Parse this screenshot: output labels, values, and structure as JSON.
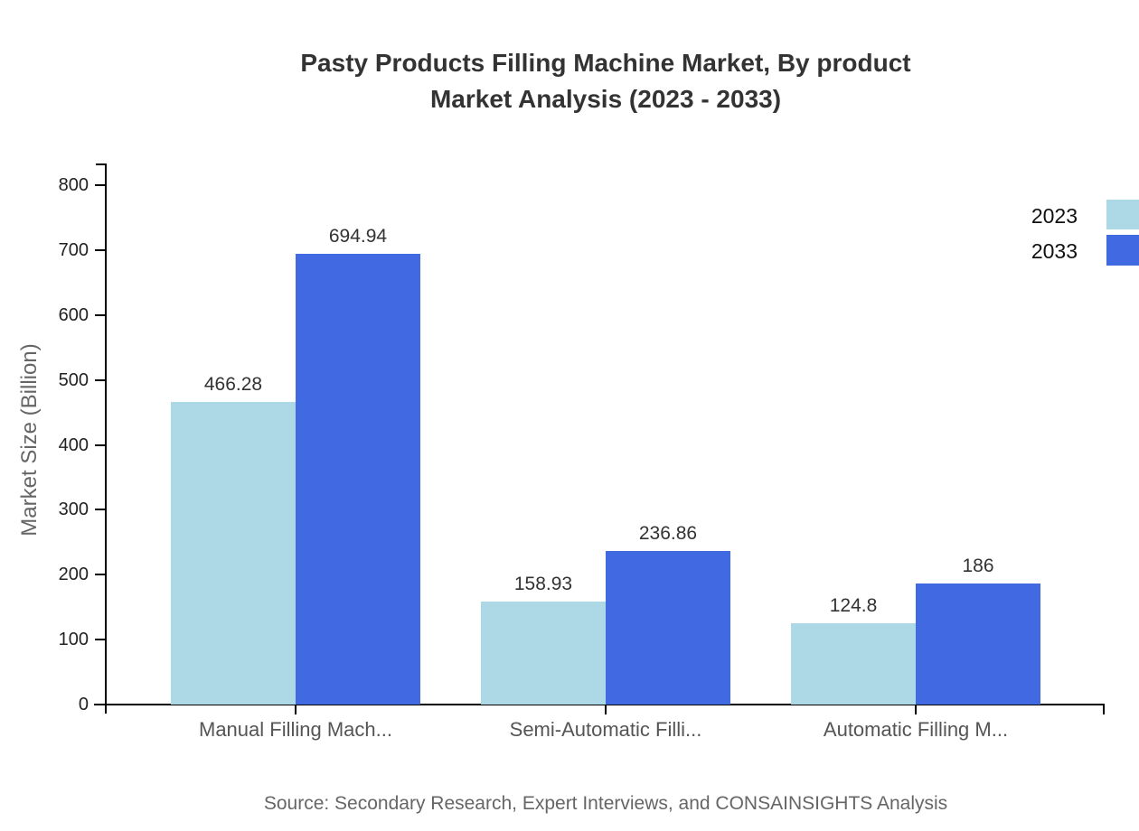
{
  "title": {
    "line1": "Pasty Products Filling Machine Market, By product",
    "line2": "Market Analysis (2023 - 2033)"
  },
  "source": "Source: Secondary Research, Expert Interviews, and CONSAINSIGHTS Analysis",
  "legend": {
    "items": [
      {
        "label": "2023",
        "color": "#ADD8E6"
      },
      {
        "label": "2033",
        "color": "#4169E1"
      }
    ]
  },
  "chart_data": {
    "type": "bar",
    "title": "Pasty Products Filling Machine Market, By product Market Analysis (2023 - 2033)",
    "categories": [
      "Manual Filling Mach...",
      "Semi-Automatic Filli...",
      "Automatic Filling M..."
    ],
    "series": [
      {
        "name": "2023",
        "color": "#ADD8E6",
        "values": [
          466.28,
          158.93,
          124.8
        ]
      },
      {
        "name": "2033",
        "color": "#4169E1",
        "values": [
          694.94,
          236.86,
          186
        ]
      }
    ],
    "xlabel": "",
    "ylabel": "Market Size (Billion)",
    "ylim": [
      0,
      800
    ],
    "yticks": [
      0,
      100,
      200,
      300,
      400,
      500,
      600,
      700,
      800
    ],
    "grid": false,
    "legend_position": "top-right",
    "bar_value_labels": true
  }
}
